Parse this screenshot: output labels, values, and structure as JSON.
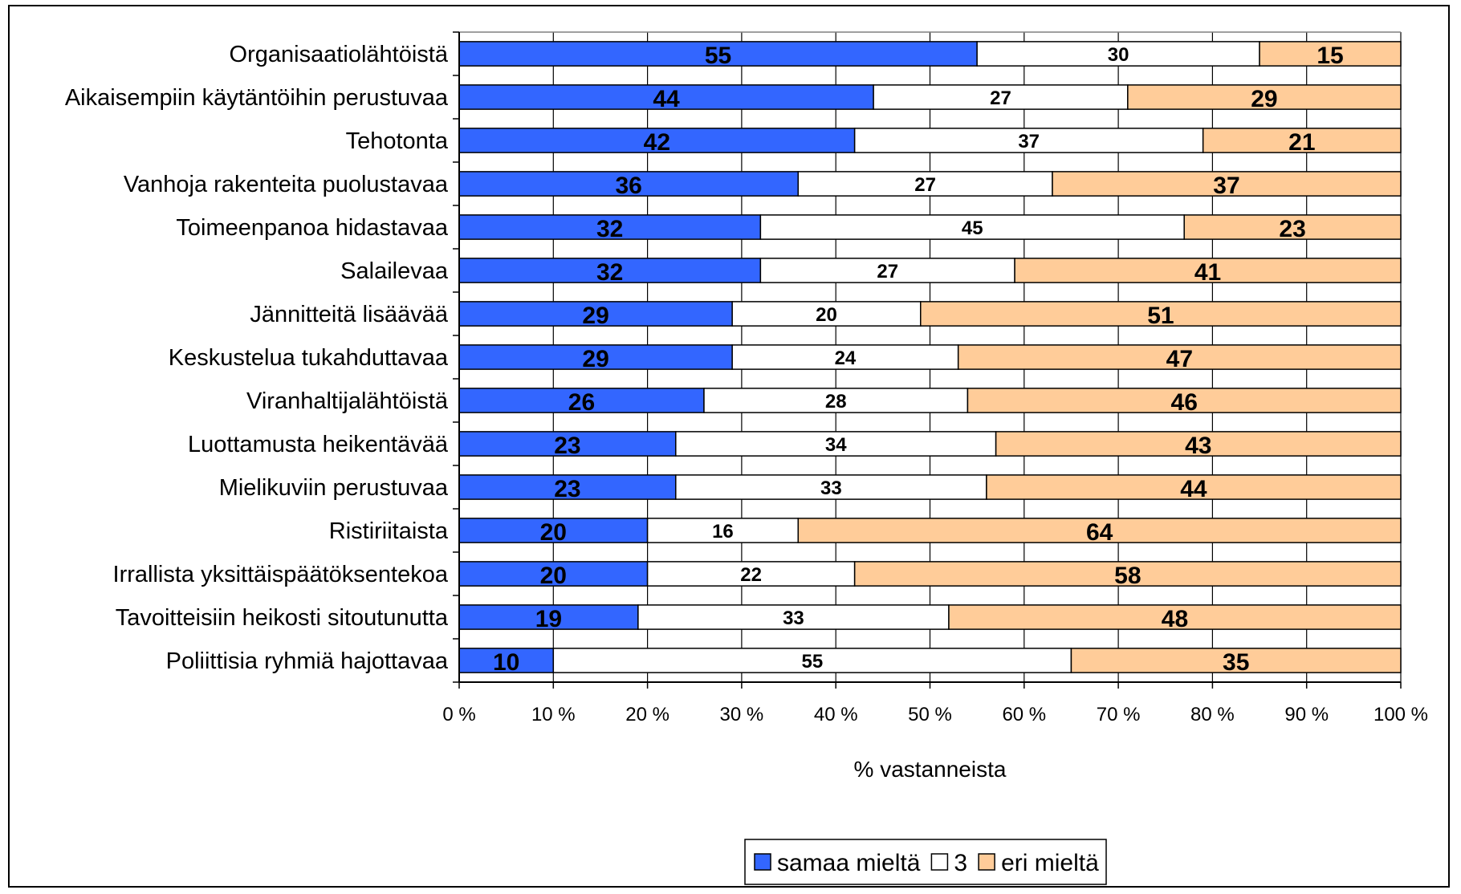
{
  "chart_data": {
    "type": "bar",
    "orientation": "horizontal",
    "stacked": "percent",
    "categories": [
      "Organisaatiolähtöistä",
      "Aikaisempiin käytäntöihin perustuvaa",
      "Tehotonta",
      "Vanhoja rakenteita puolustavaa",
      "Toimeenpanoa hidastavaa",
      "Salailevaa",
      "Jännitteitä lisäävää",
      "Keskustelua tukahduttavaa",
      "Viranhaltijalähtöistä",
      "Luottamusta heikentävää",
      "Mielikuviin perustuvaa",
      "Ristiriitaista",
      "Irrallista yksittäispäätöksentekoa",
      "Tavoitteisiin heikosti sitoutunutta",
      "Poliittisia ryhmiä hajottavaa"
    ],
    "series": [
      {
        "name": "samaa mieltä",
        "color": "#3366ff",
        "values": [
          55,
          44,
          42,
          36,
          32,
          32,
          29,
          29,
          26,
          23,
          23,
          20,
          20,
          19,
          10
        ]
      },
      {
        "name": "3",
        "color": "#ffffff",
        "values": [
          30,
          27,
          37,
          27,
          45,
          27,
          20,
          24,
          28,
          34,
          33,
          16,
          22,
          33,
          55
        ]
      },
      {
        "name": "eri mieltä",
        "color": "#ffcc99",
        "values": [
          15,
          29,
          21,
          37,
          23,
          41,
          51,
          47,
          46,
          43,
          44,
          64,
          58,
          48,
          35
        ]
      }
    ],
    "xlabel": "% vastanneista",
    "xlim": [
      0,
      100
    ],
    "x_ticks": [
      "0 %",
      "10 %",
      "20 %",
      "30 %",
      "40 %",
      "50 %",
      "60 %",
      "70 %",
      "80 %",
      "90 %",
      "100 %"
    ],
    "grid": true,
    "legend": "bottom"
  }
}
